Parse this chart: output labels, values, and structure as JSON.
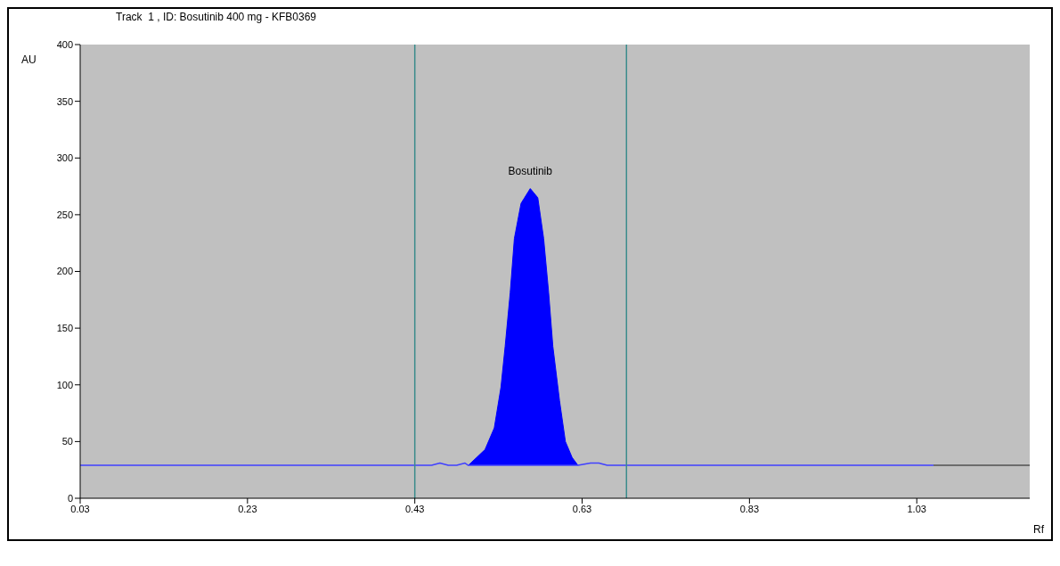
{
  "chart_data": {
    "type": "line",
    "title": "Track  1 , ID: Bosutinib 400 mg - KFB0369",
    "ylabel": "AU",
    "xlabel": "Rf",
    "xlim": [
      0.03,
      1.165
    ],
    "xticks": [
      0.03,
      0.23,
      0.43,
      0.63,
      0.83,
      1.03
    ],
    "ylim": [
      0,
      400
    ],
    "yticks": [
      0,
      50,
      100,
      150,
      200,
      250,
      300,
      350,
      400
    ],
    "marker": "none",
    "series": [
      {
        "color": "#4040ff",
        "x": [
          0.03,
          0.43,
          0.45,
          0.46,
          0.47,
          0.48,
          0.49,
          0.494,
          0.625,
          0.64,
          0.65,
          0.66,
          0.67,
          0.683,
          1.05
        ],
        "values": [
          29,
          29,
          29,
          31,
          29,
          29,
          31,
          29,
          29,
          31,
          31,
          29,
          29,
          29,
          29
        ]
      },
      {
        "type": "area",
        "color": "#0000ff",
        "x": [
          0.494,
          0.514,
          0.525,
          0.533,
          0.538,
          0.544,
          0.549,
          0.557,
          0.568,
          0.577,
          0.584,
          0.59,
          0.595,
          0.603,
          0.61,
          0.618,
          0.625
        ],
        "values": [
          29,
          43,
          62,
          98,
          134,
          181,
          229,
          260,
          273,
          265,
          229,
          181,
          134,
          86,
          50,
          36,
          29
        ]
      },
      {
        "color": "#505050",
        "x": [
          1.05,
          1.165
        ],
        "values": [
          29,
          29
        ]
      }
    ],
    "ref_lines": [
      {
        "axis": "x",
        "value": 0.43,
        "color": "#3a8c8c"
      },
      {
        "axis": "x",
        "value": 0.683,
        "color": "#3a8c8c"
      }
    ],
    "annotations": [
      {
        "text": "Bosutinib",
        "x": 0.568,
        "y": 273
      }
    ]
  }
}
